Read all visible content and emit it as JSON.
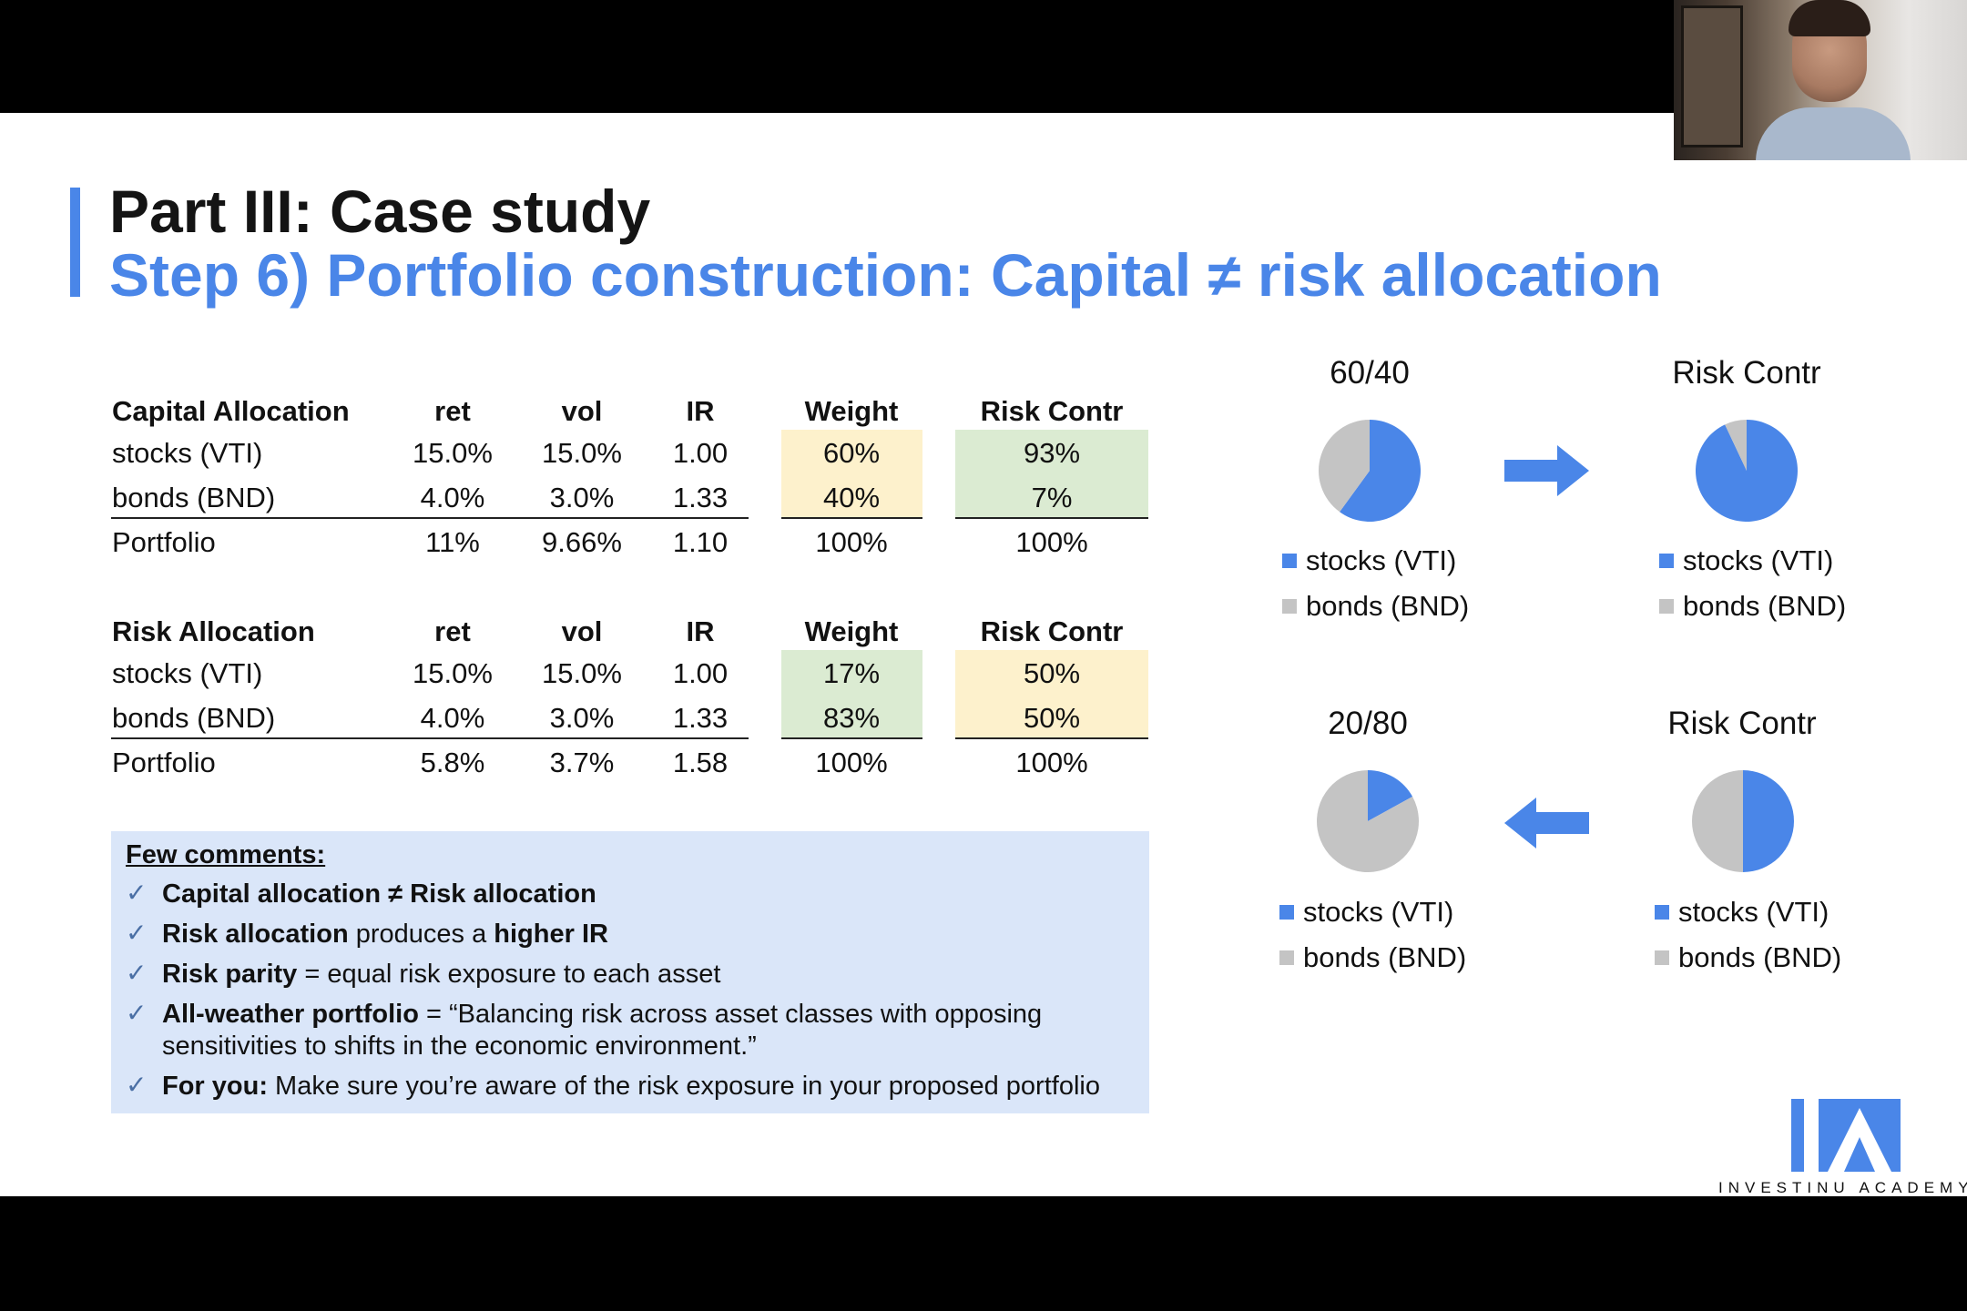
{
  "title": {
    "line1": "Part III: Case study",
    "line2": "Step 6) Portfolio construction: Capital ≠ risk allocation"
  },
  "capital_table": {
    "headers": [
      "Capital Allocation",
      "ret",
      "vol",
      "IR",
      "Weight",
      "Risk Contr"
    ],
    "rows": [
      [
        "stocks (VTI)",
        "15.0%",
        "15.0%",
        "1.00",
        "60%",
        "93%"
      ],
      [
        "bonds (BND)",
        "4.0%",
        "3.0%",
        "1.33",
        "40%",
        "7%"
      ],
      [
        "Portfolio",
        "11%",
        "9.66%",
        "1.10",
        "100%",
        "100%"
      ]
    ]
  },
  "risk_table": {
    "headers": [
      "Risk Allocation",
      "ret",
      "vol",
      "IR",
      "Weight",
      "Risk Contr"
    ],
    "rows": [
      [
        "stocks (VTI)",
        "15.0%",
        "15.0%",
        "1.00",
        "17%",
        "50%"
      ],
      [
        "bonds (BND)",
        "4.0%",
        "3.0%",
        "1.33",
        "83%",
        "50%"
      ],
      [
        "Portfolio",
        "5.8%",
        "3.7%",
        "1.58",
        "100%",
        "100%"
      ]
    ]
  },
  "comments": {
    "title": "Few comments:",
    "items": [
      {
        "bold": "Capital allocation ≠ Risk allocation",
        "text": ""
      },
      {
        "bold": "Risk allocation",
        "text": " produces a ",
        "bold2": "higher IR"
      },
      {
        "bold": "Risk parity",
        "text": " = equal risk exposure to each asset"
      },
      {
        "bold": "All-weather portfolio",
        "text": " = “Balancing risk across asset classes with opposing sensitivities to shifts in the economic environment.”"
      },
      {
        "bold": "For you:",
        "text": " Make sure you’re aware of the risk exposure in your proposed portfolio"
      }
    ]
  },
  "colors": {
    "accent": "#4a86e8",
    "stocks": "#4a86e8",
    "bonds": "#c4c4c4",
    "yellow_highlight": "#fdf1cc",
    "green_highlight": "#dbebd2",
    "comment_bg": "#dae6f9"
  },
  "chart_data": [
    {
      "type": "pie",
      "title": "60/40",
      "categories": [
        "stocks (VTI)",
        "bonds (BND)"
      ],
      "values": [
        60,
        40
      ]
    },
    {
      "type": "pie",
      "title": "Risk Contr",
      "categories": [
        "stocks (VTI)",
        "bonds (BND)"
      ],
      "values": [
        93,
        7
      ]
    },
    {
      "type": "pie",
      "title": "20/80",
      "categories": [
        "stocks (VTI)",
        "bonds (BND)"
      ],
      "values": [
        17,
        83
      ]
    },
    {
      "type": "pie",
      "title": "Risk Contr",
      "categories": [
        "stocks (VTI)",
        "bonds (BND)"
      ],
      "values": [
        50,
        50
      ]
    }
  ],
  "arrows": [
    "arrow-right-icon",
    "arrow-left-icon"
  ],
  "logo": {
    "brand": "INVESTINU ACADEMY",
    "icon": "investinu-logo-icon"
  },
  "webcam": {
    "icon": "presenter-webcam"
  }
}
